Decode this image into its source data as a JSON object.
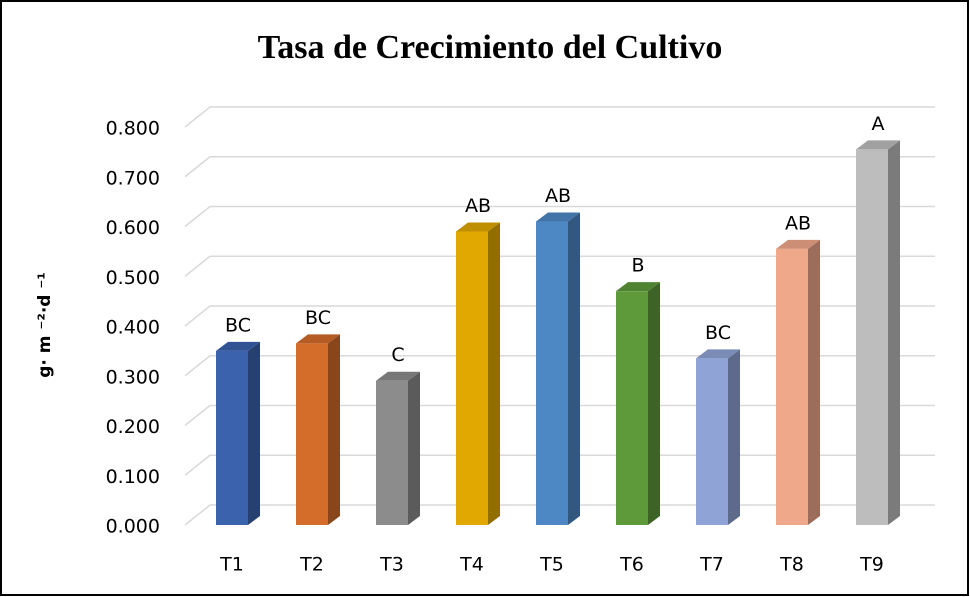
{
  "chart_data": {
    "type": "bar3d",
    "title": "Tasa de Crecimiento del Cultivo",
    "y_label": "g· m ⁻²·d ⁻¹",
    "categories": [
      "T1",
      "T2",
      "T3",
      "T4",
      "T5",
      "T6",
      "T7",
      "T8",
      "T9"
    ],
    "values": [
      0.35,
      0.365,
      0.29,
      0.59,
      0.61,
      0.47,
      0.335,
      0.555,
      0.755
    ],
    "annotations": [
      "BC",
      "BC",
      "C",
      "AB",
      "AB",
      "B",
      "BC",
      "AB",
      "A"
    ],
    "colors": [
      "#3a62ad",
      "#d46c2a",
      "#8c8c8c",
      "#e0a800",
      "#4e88c4",
      "#5e9a3a",
      "#8fa3d6",
      "#f0a88a",
      "#bdbdbd"
    ],
    "ylim": [
      0,
      0.8
    ],
    "yticks": [
      {
        "value": 0,
        "label": "0.000"
      },
      {
        "value": 0.1,
        "label": "0.100"
      },
      {
        "value": 0.2,
        "label": "0.200"
      },
      {
        "value": 0.3,
        "label": "0.300"
      },
      {
        "value": 0.4,
        "label": "0.400"
      },
      {
        "value": 0.5,
        "label": "0.500"
      },
      {
        "value": 0.6,
        "label": "0.600"
      },
      {
        "value": 0.7,
        "label": "0.700"
      },
      {
        "value": 0.8,
        "label": "0.800"
      }
    ],
    "grid": true
  }
}
